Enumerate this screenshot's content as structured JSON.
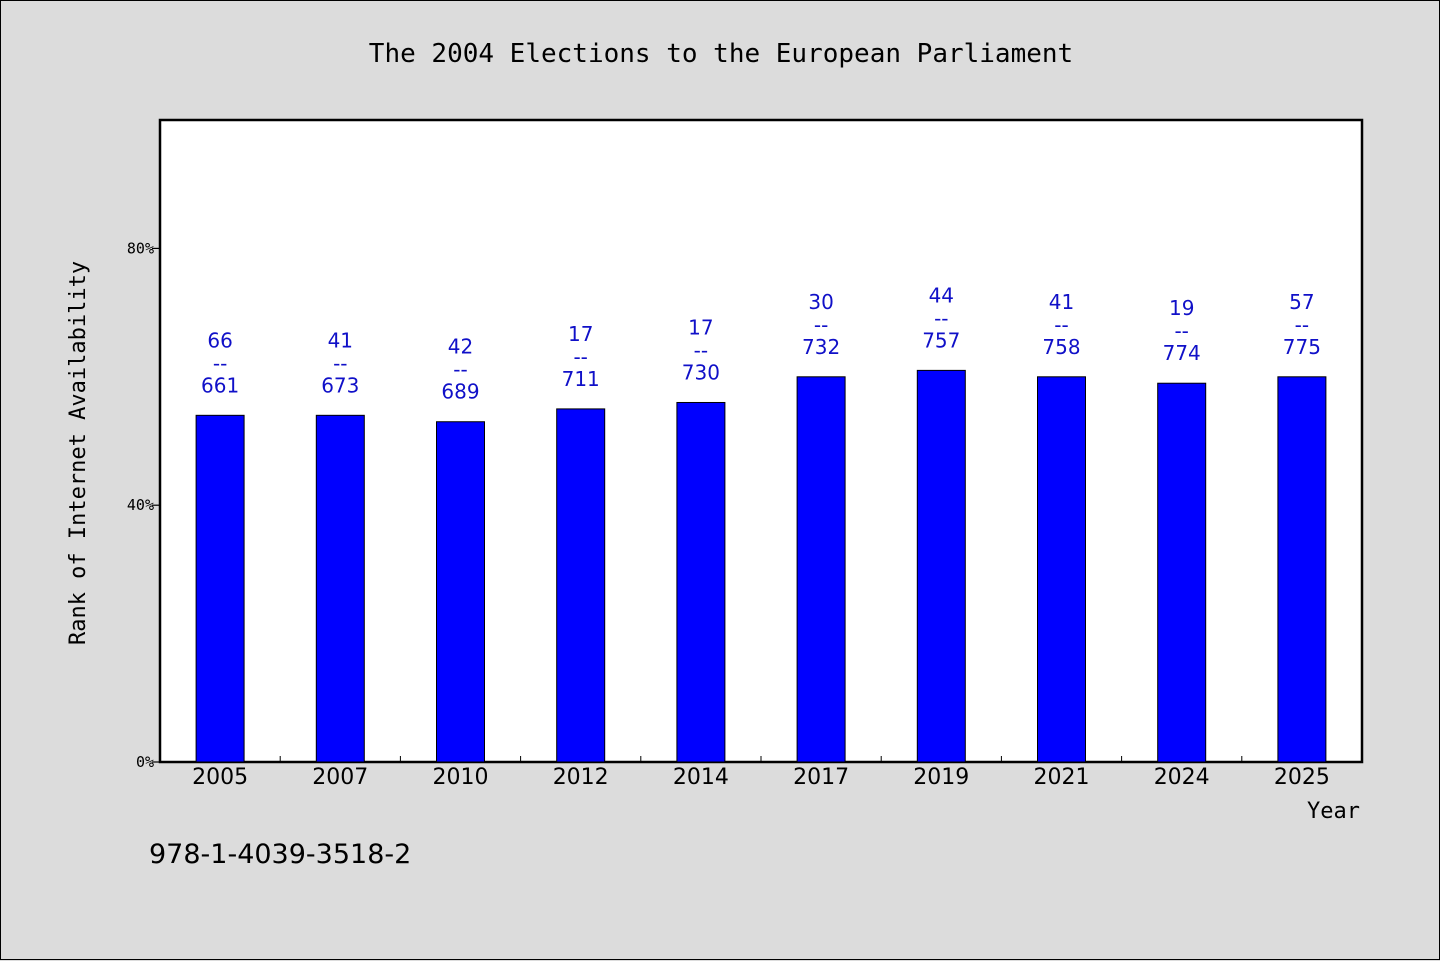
{
  "footnote": "978-1-4039-3518-2",
  "colors": {
    "background": "#dcdcdc",
    "plot_background": "#ffffff",
    "bar": "#0000ff",
    "data_label": "#1010c8"
  },
  "chart_data": {
    "type": "bar",
    "title": "The 2004 Elections to the European Parliament",
    "xlabel": "Year",
    "ylabel": "Rank of Internet Availability",
    "ylim": [
      0,
      100
    ],
    "yticks": [
      0,
      40,
      80
    ],
    "ytick_labels": [
      "0%",
      "40%",
      "80%"
    ],
    "grid": false,
    "categories": [
      "2005",
      "2007",
      "2010",
      "2012",
      "2014",
      "2017",
      "2019",
      "2021",
      "2024",
      "2025"
    ],
    "values": [
      54,
      54,
      53,
      55,
      56,
      60,
      61,
      60,
      59,
      60
    ],
    "labels_top": [
      "66",
      "41",
      "42",
      "17",
      "17",
      "30",
      "44",
      "41",
      "19",
      "57"
    ],
    "labels_bottom": [
      "661",
      "673",
      "689",
      "711",
      "730",
      "732",
      "757",
      "758",
      "774",
      "775"
    ]
  }
}
